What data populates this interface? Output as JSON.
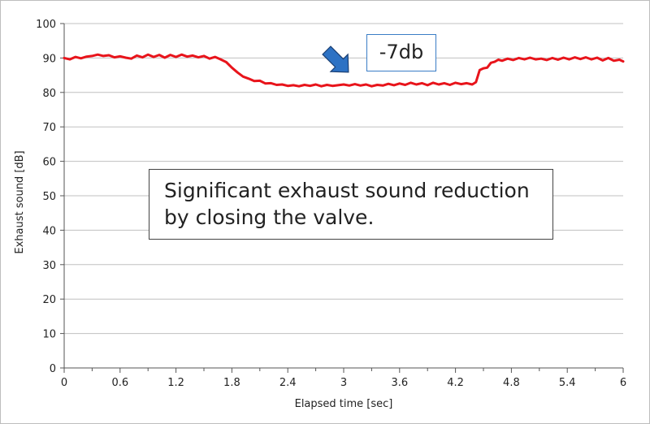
{
  "chart_data": {
    "type": "line",
    "title": "",
    "xlabel": "Elapsed time [sec]",
    "ylabel": "Exhaust sound [dB]",
    "xlim": [
      0,
      6
    ],
    "ylim": [
      0,
      100
    ],
    "x_ticks": [
      "0",
      "0.6",
      "1.2",
      "1.8",
      "2.4",
      "3",
      "3.6",
      "4.2",
      "4.8",
      "5.4",
      "6"
    ],
    "y_ticks": [
      "0",
      "10",
      "20",
      "30",
      "40",
      "50",
      "60",
      "70",
      "80",
      "90",
      "100"
    ],
    "grid": "horizontal",
    "series": [
      {
        "color": "#e8141b",
        "points": [
          [
            0.0,
            90.0
          ],
          [
            0.06,
            89.6
          ],
          [
            0.12,
            90.3
          ],
          [
            0.18,
            89.9
          ],
          [
            0.24,
            90.4
          ],
          [
            0.3,
            90.6
          ],
          [
            0.36,
            91.0
          ],
          [
            0.42,
            90.6
          ],
          [
            0.48,
            90.8
          ],
          [
            0.54,
            90.2
          ],
          [
            0.6,
            90.5
          ],
          [
            0.66,
            90.1
          ],
          [
            0.72,
            89.8
          ],
          [
            0.78,
            90.7
          ],
          [
            0.84,
            90.2
          ],
          [
            0.9,
            91.0
          ],
          [
            0.96,
            90.3
          ],
          [
            1.02,
            90.9
          ],
          [
            1.08,
            90.1
          ],
          [
            1.14,
            90.9
          ],
          [
            1.2,
            90.3
          ],
          [
            1.26,
            91.0
          ],
          [
            1.32,
            90.4
          ],
          [
            1.38,
            90.7
          ],
          [
            1.44,
            90.2
          ],
          [
            1.5,
            90.6
          ],
          [
            1.56,
            89.8
          ],
          [
            1.62,
            90.3
          ],
          [
            1.68,
            89.6
          ],
          [
            1.74,
            88.8
          ],
          [
            1.8,
            87.2
          ],
          [
            1.86,
            85.8
          ],
          [
            1.92,
            84.6
          ],
          [
            1.98,
            84.0
          ],
          [
            2.04,
            83.3
          ],
          [
            2.1,
            83.4
          ],
          [
            2.16,
            82.6
          ],
          [
            2.22,
            82.7
          ],
          [
            2.28,
            82.2
          ],
          [
            2.34,
            82.3
          ],
          [
            2.4,
            81.9
          ],
          [
            2.46,
            82.1
          ],
          [
            2.52,
            81.8
          ],
          [
            2.58,
            82.2
          ],
          [
            2.64,
            81.9
          ],
          [
            2.7,
            82.3
          ],
          [
            2.76,
            81.8
          ],
          [
            2.82,
            82.2
          ],
          [
            2.88,
            81.9
          ],
          [
            2.94,
            82.1
          ],
          [
            3.0,
            82.3
          ],
          [
            3.06,
            82.0
          ],
          [
            3.12,
            82.4
          ],
          [
            3.18,
            82.0
          ],
          [
            3.24,
            82.3
          ],
          [
            3.3,
            81.8
          ],
          [
            3.36,
            82.2
          ],
          [
            3.42,
            82.0
          ],
          [
            3.48,
            82.5
          ],
          [
            3.54,
            82.1
          ],
          [
            3.6,
            82.6
          ],
          [
            3.66,
            82.2
          ],
          [
            3.72,
            82.8
          ],
          [
            3.78,
            82.3
          ],
          [
            3.84,
            82.7
          ],
          [
            3.9,
            82.1
          ],
          [
            3.96,
            82.8
          ],
          [
            4.02,
            82.3
          ],
          [
            4.08,
            82.7
          ],
          [
            4.14,
            82.2
          ],
          [
            4.2,
            82.8
          ],
          [
            4.26,
            82.4
          ],
          [
            4.32,
            82.7
          ],
          [
            4.38,
            82.3
          ],
          [
            4.42,
            83.0
          ],
          [
            4.46,
            86.5
          ],
          [
            4.5,
            87.0
          ],
          [
            4.54,
            87.2
          ],
          [
            4.58,
            88.6
          ],
          [
            4.62,
            88.9
          ],
          [
            4.66,
            89.5
          ],
          [
            4.7,
            89.2
          ],
          [
            4.76,
            89.8
          ],
          [
            4.82,
            89.4
          ],
          [
            4.88,
            90.0
          ],
          [
            4.94,
            89.6
          ],
          [
            5.0,
            90.1
          ],
          [
            5.06,
            89.6
          ],
          [
            5.12,
            89.8
          ],
          [
            5.18,
            89.4
          ],
          [
            5.24,
            90.0
          ],
          [
            5.3,
            89.5
          ],
          [
            5.36,
            90.1
          ],
          [
            5.42,
            89.6
          ],
          [
            5.48,
            90.2
          ],
          [
            5.54,
            89.7
          ],
          [
            5.6,
            90.2
          ],
          [
            5.66,
            89.6
          ],
          [
            5.72,
            90.1
          ],
          [
            5.78,
            89.3
          ],
          [
            5.84,
            90.0
          ],
          [
            5.9,
            89.2
          ],
          [
            5.96,
            89.5
          ],
          [
            6.0,
            89.0
          ]
        ]
      }
    ],
    "annotations": {
      "callout": "-7db",
      "note_line1": "Significant exhaust sound reduction",
      "note_line2": "by closing the valve."
    },
    "colors": {
      "line": "#e8141b",
      "grid": "#c0c0c0",
      "arrow_fill": "#2d72c4",
      "arrow_stroke": "#1a3f73",
      "callout_border": "#3a7dc6"
    }
  }
}
